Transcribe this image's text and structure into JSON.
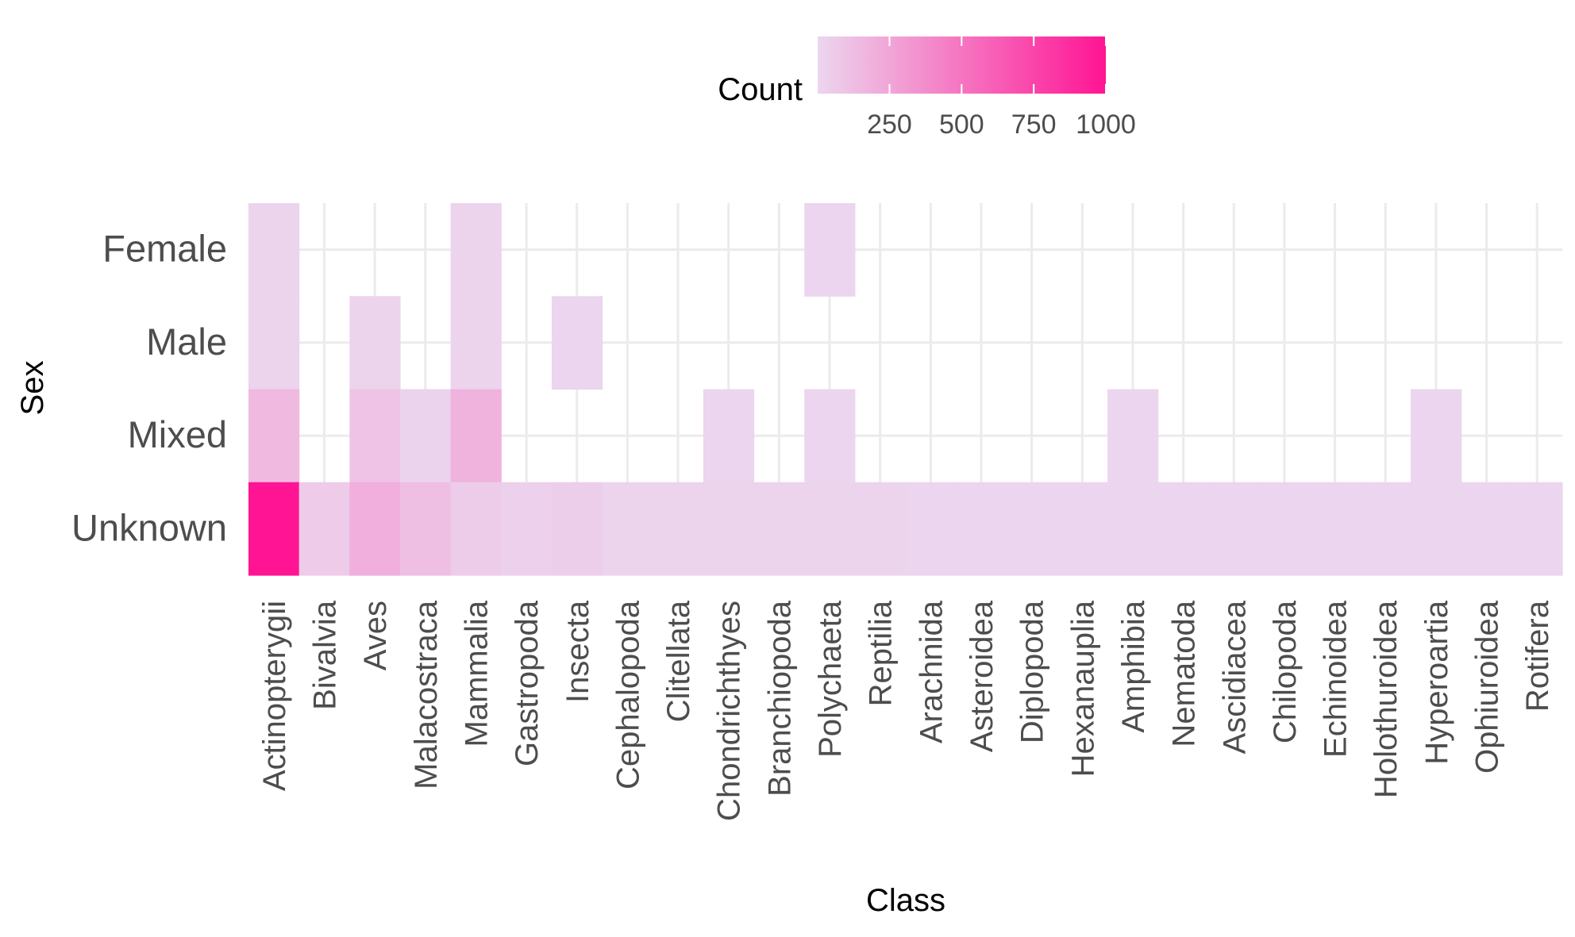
{
  "chart_data": {
    "type": "heatmap",
    "xlabel": "Class",
    "ylabel": "Sex",
    "x": [
      "Actinopterygii",
      "Bivalvia",
      "Aves",
      "Malacostraca",
      "Mammalia",
      "Gastropoda",
      "Insecta",
      "Cephalopoda",
      "Clitellata",
      "Chondrichthyes",
      "Branchiopoda",
      "Polychaeta",
      "Reptilia",
      "Arachnida",
      "Asteroidea",
      "Diplopoda",
      "Hexanauplia",
      "Amphibia",
      "Nematoda",
      "Ascidiacea",
      "Chilopoda",
      "Echinoidea",
      "Holothuroidea",
      "Hyperoartia",
      "Ophiuroidea",
      "Rotifera"
    ],
    "y": [
      "Female",
      "Male",
      "Mixed",
      "Unknown"
    ],
    "values": [
      {
        "x": "Actinopterygii",
        "y": "Female",
        "value": 10
      },
      {
        "x": "Actinopterygii",
        "y": "Male",
        "value": 10
      },
      {
        "x": "Actinopterygii",
        "y": "Mixed",
        "value": 150
      },
      {
        "x": "Actinopterygii",
        "y": "Unknown",
        "value": 1000
      },
      {
        "x": "Bivalvia",
        "y": "Unknown",
        "value": 60
      },
      {
        "x": "Aves",
        "y": "Male",
        "value": 10
      },
      {
        "x": "Aves",
        "y": "Mixed",
        "value": 100
      },
      {
        "x": "Aves",
        "y": "Unknown",
        "value": 200
      },
      {
        "x": "Malacostraca",
        "y": "Mixed",
        "value": 15
      },
      {
        "x": "Malacostraca",
        "y": "Unknown",
        "value": 120
      },
      {
        "x": "Mammalia",
        "y": "Female",
        "value": 10
      },
      {
        "x": "Mammalia",
        "y": "Male",
        "value": 10
      },
      {
        "x": "Mammalia",
        "y": "Mixed",
        "value": 180
      },
      {
        "x": "Mammalia",
        "y": "Unknown",
        "value": 50
      },
      {
        "x": "Gastropoda",
        "y": "Unknown",
        "value": 30
      },
      {
        "x": "Insecta",
        "y": "Male",
        "value": 5
      },
      {
        "x": "Insecta",
        "y": "Unknown",
        "value": 40
      },
      {
        "x": "Cephalopoda",
        "y": "Unknown",
        "value": 10
      },
      {
        "x": "Clitellata",
        "y": "Unknown",
        "value": 10
      },
      {
        "x": "Chondrichthyes",
        "y": "Mixed",
        "value": 5
      },
      {
        "x": "Chondrichthyes",
        "y": "Unknown",
        "value": 10
      },
      {
        "x": "Branchiopoda",
        "y": "Unknown",
        "value": 10
      },
      {
        "x": "Polychaeta",
        "y": "Female",
        "value": 5
      },
      {
        "x": "Polychaeta",
        "y": "Mixed",
        "value": 5
      },
      {
        "x": "Polychaeta",
        "y": "Unknown",
        "value": 10
      },
      {
        "x": "Reptilia",
        "y": "Unknown",
        "value": 10
      },
      {
        "x": "Arachnida",
        "y": "Unknown",
        "value": 5
      },
      {
        "x": "Asteroidea",
        "y": "Unknown",
        "value": 5
      },
      {
        "x": "Diplopoda",
        "y": "Unknown",
        "value": 5
      },
      {
        "x": "Hexanauplia",
        "y": "Unknown",
        "value": 5
      },
      {
        "x": "Amphibia",
        "y": "Mixed",
        "value": 5
      },
      {
        "x": "Amphibia",
        "y": "Unknown",
        "value": 5
      },
      {
        "x": "Nematoda",
        "y": "Unknown",
        "value": 5
      },
      {
        "x": "Ascidiacea",
        "y": "Unknown",
        "value": 5
      },
      {
        "x": "Chilopoda",
        "y": "Unknown",
        "value": 5
      },
      {
        "x": "Echinoidea",
        "y": "Unknown",
        "value": 5
      },
      {
        "x": "Holothuroidea",
        "y": "Unknown",
        "value": 5
      },
      {
        "x": "Hyperoartia",
        "y": "Mixed",
        "value": 5
      },
      {
        "x": "Hyperoartia",
        "y": "Unknown",
        "value": 5
      },
      {
        "x": "Ophiuroidea",
        "y": "Unknown",
        "value": 5
      },
      {
        "x": "Rotifera",
        "y": "Unknown",
        "value": 5
      }
    ],
    "legend": {
      "title": "Count",
      "position": "top",
      "ticks": [
        250,
        500,
        750,
        1000
      ],
      "tick_labels": [
        "250",
        "500",
        "750",
        "1000"
      ],
      "range": [
        1,
        1000
      ],
      "low_color": "#ecd6ee",
      "high_color": "#ff1493"
    },
    "grid": true
  }
}
